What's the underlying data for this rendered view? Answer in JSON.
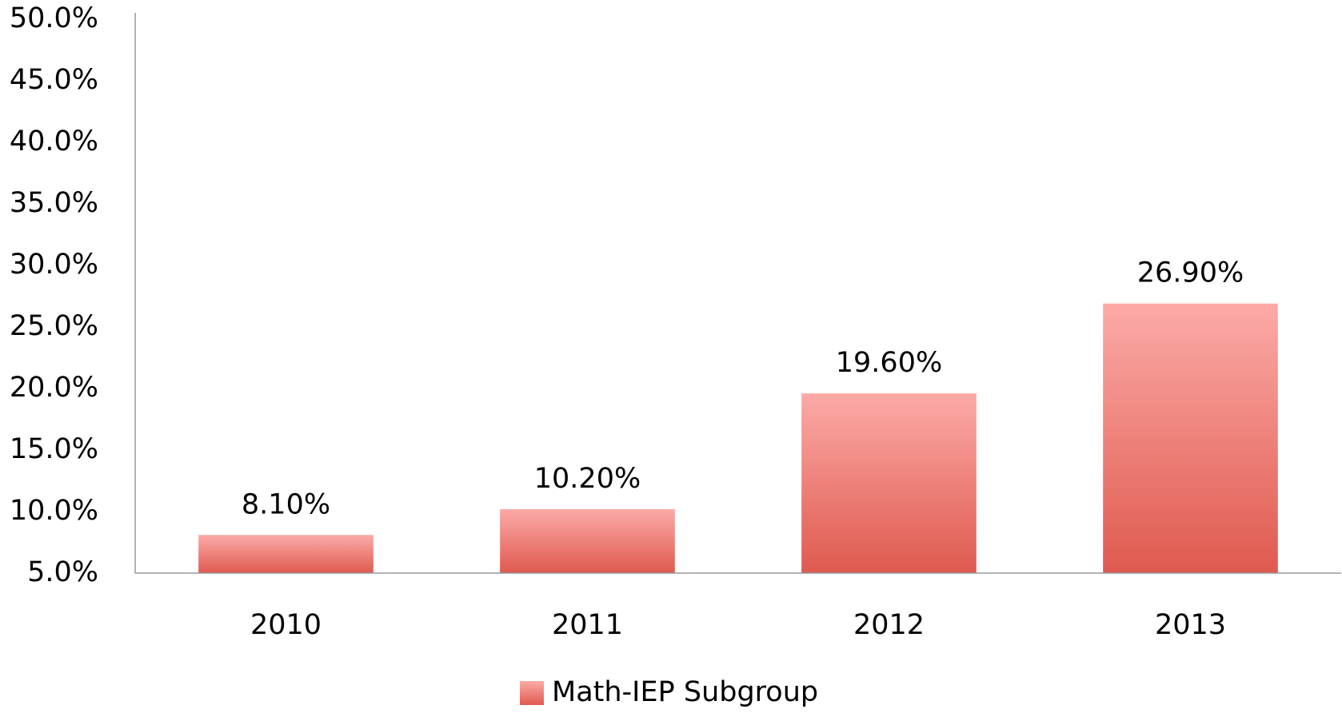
{
  "chart_data": {
    "type": "bar",
    "categories": [
      "2010",
      "2011",
      "2012",
      "2013"
    ],
    "series": [
      {
        "name": "Math-IEP Subgroup",
        "color": "#e05a50",
        "values": [
          8.1,
          10.2,
          19.6,
          26.9
        ],
        "value_labels": [
          "8.10%",
          "10.20%",
          "19.60%",
          "26.90%"
        ]
      }
    ],
    "ylim": [
      5,
      50
    ],
    "yticks": [
      {
        "value": 5,
        "label": "5.0%"
      },
      {
        "value": 10,
        "label": "10.0%"
      },
      {
        "value": 15,
        "label": "15.0%"
      },
      {
        "value": 20,
        "label": "20.0%"
      },
      {
        "value": 25,
        "label": "25.0%"
      },
      {
        "value": 30,
        "label": "30.0%"
      },
      {
        "value": 35,
        "label": "35.0%"
      },
      {
        "value": 40,
        "label": "40.0%"
      },
      {
        "value": 45,
        "label": "45.0%"
      },
      {
        "value": 50,
        "label": "50.0%"
      }
    ],
    "grid": false,
    "legend": "bottom"
  }
}
